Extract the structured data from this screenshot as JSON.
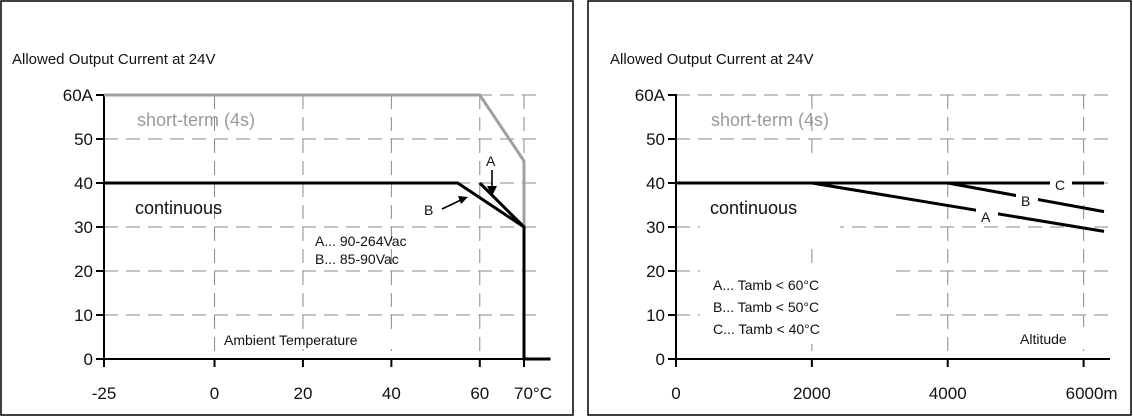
{
  "chart_data": [
    {
      "type": "line",
      "title": "Allowed Output Current at 24V",
      "xlabel": "Ambient Temperature",
      "ylabel": "",
      "xlim": [
        -25,
        70
      ],
      "ylim": [
        0,
        60
      ],
      "x_ticks": [
        -25,
        0,
        20,
        40,
        60,
        70
      ],
      "x_tick_labels": [
        "-25",
        "0",
        "20",
        "40",
        "60",
        "70°C"
      ],
      "y_ticks": [
        0,
        10,
        20,
        30,
        40,
        50,
        60
      ],
      "y_tick_labels": [
        "0",
        "10",
        "20",
        "30",
        "40",
        "50",
        "60A"
      ],
      "grid": true,
      "series": [
        {
          "name": "short-term (4s)",
          "color": "#a0a0a0",
          "points": [
            [
              -25,
              60
            ],
            [
              60,
              60
            ],
            [
              70,
              45
            ],
            [
              70,
              30
            ]
          ]
        },
        {
          "name": "continuous",
          "color": "#000000",
          "points": [
            [
              -25,
              40
            ],
            [
              55,
              40
            ],
            [
              70,
              30
            ],
            [
              70,
              0
            ],
            [
              76,
              0
            ]
          ]
        },
        {
          "name": "A",
          "color": "#000000",
          "points": [
            [
              60,
              40
            ],
            [
              70,
              30
            ]
          ]
        }
      ],
      "annotations": {
        "short_label": "short-term (4s)",
        "cont_label": "continuous",
        "label_a": "A",
        "label_b": "B",
        "legend": [
          "A... 90-264Vac",
          "B... 85-90Vac"
        ]
      }
    },
    {
      "type": "line",
      "title": "Allowed Output Current at 24V",
      "xlabel": "Altitude",
      "ylabel": "",
      "xlim": [
        0,
        6000
      ],
      "ylim": [
        0,
        60
      ],
      "x_ticks": [
        0,
        2000,
        4000,
        6000
      ],
      "x_tick_labels": [
        "0",
        "2000",
        "4000",
        "6000m"
      ],
      "y_ticks": [
        0,
        10,
        20,
        30,
        40,
        50,
        60
      ],
      "y_tick_labels": [
        "0",
        "10",
        "20",
        "30",
        "40",
        "50",
        "60A"
      ],
      "grid": true,
      "series": [
        {
          "name": "C",
          "color": "#000000",
          "points": [
            [
              0,
              40
            ],
            [
              6300,
              40
            ]
          ]
        },
        {
          "name": "B",
          "color": "#000000",
          "points": [
            [
              4000,
              40
            ],
            [
              6300,
              33.5
            ]
          ]
        },
        {
          "name": "A",
          "color": "#000000",
          "points": [
            [
              2000,
              40
            ],
            [
              6300,
              29
            ]
          ]
        }
      ],
      "annotations": {
        "short_label": "short-term (4s)",
        "cont_label": "continuous",
        "label_a": "A",
        "label_b": "B",
        "label_c": "C",
        "legend": [
          "A... Tamb < 60°C",
          "B... Tamb < 50°C",
          "C... Tamb < 40°C"
        ]
      }
    }
  ]
}
